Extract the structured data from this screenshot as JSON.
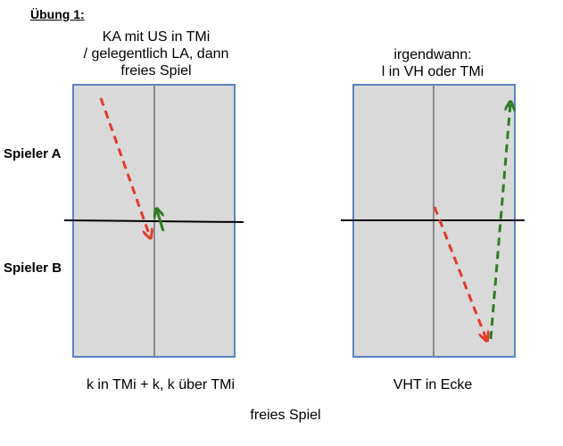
{
  "title": "Übung 1:",
  "players": {
    "a": "Spieler A",
    "b": "Spieler B"
  },
  "left_court": {
    "caption_lines": [
      "KA mit US in TMi",
      "/ gelegentlich LA, dann",
      "freies Spiel"
    ],
    "bottom_text": "k in TMi + k, k über TMi"
  },
  "right_court": {
    "caption_lines": [
      "irgendwann:",
      "l in VH oder TMi"
    ],
    "bottom_text": "VHT in Ecke"
  },
  "footer": "freies Spiel",
  "colors": {
    "court_fill": "#d9d9d9",
    "court_border": "#5b84c0",
    "center_line": "#8a8a8a",
    "net": "#000000",
    "arrow_red": "#e23a2a",
    "arrow_green": "#2f7d22"
  }
}
